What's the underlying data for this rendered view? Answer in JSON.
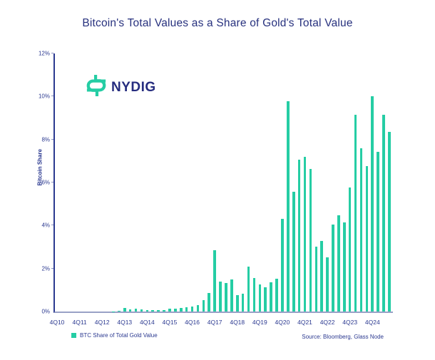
{
  "header": {
    "title": "Bitcoin's Total Values as a Share of Gold's Total Value"
  },
  "logo": {
    "text": "NYDIG"
  },
  "legend": {
    "label": "BTC Share of Total Gold Value"
  },
  "source": {
    "text": "Source: Bloomberg, Glass Node"
  },
  "colors": {
    "bar": "#25CDA4",
    "navy_text": "#2B3990",
    "title_text": "#27317E",
    "y_axis_line": "#2B3990",
    "x_axis_line": "#99A1C6"
  },
  "chart_data": {
    "type": "bar",
    "title": "Bitcoin's Total Values as a Share of Gold's Total Value",
    "xlabel": "",
    "ylabel": "Bitcoin Share",
    "ylim": [
      0,
      12
    ],
    "grid": false,
    "legend_position": "bottom-left",
    "y_tick_labels": [
      "0%",
      "2%",
      "4%",
      "6%",
      "8%",
      "10%",
      "12%"
    ],
    "x_tick_labels": [
      "4Q10",
      "4Q11",
      "4Q12",
      "4Q13",
      "4Q14",
      "4Q15",
      "4Q16",
      "4Q17",
      "4Q18",
      "4Q19",
      "4Q20",
      "4Q21",
      "4Q22",
      "4Q23",
      "4Q24"
    ],
    "x_tick_every": 4,
    "categories": [
      "4Q10",
      "1Q11",
      "2Q11",
      "3Q11",
      "4Q11",
      "1Q12",
      "2Q12",
      "3Q12",
      "4Q12",
      "1Q13",
      "2Q13",
      "3Q13",
      "4Q13",
      "1Q14",
      "2Q14",
      "3Q14",
      "4Q14",
      "1Q15",
      "2Q15",
      "3Q15",
      "4Q15",
      "1Q16",
      "2Q16",
      "3Q16",
      "4Q16",
      "1Q17",
      "2Q17",
      "3Q17",
      "4Q17",
      "1Q18",
      "2Q18",
      "3Q18",
      "4Q18",
      "1Q19",
      "2Q19",
      "3Q19",
      "4Q19",
      "1Q20",
      "2Q20",
      "3Q20",
      "4Q20",
      "1Q21",
      "2Q21",
      "3Q21",
      "4Q21",
      "1Q22",
      "2Q22",
      "3Q22",
      "4Q22",
      "1Q23",
      "2Q23",
      "3Q23",
      "4Q23",
      "1Q24",
      "2Q24",
      "3Q24",
      "4Q24",
      "1Q25",
      "2Q25",
      "3Q25"
    ],
    "series": [
      {
        "name": "BTC Share of Total Gold Value",
        "color": "#25CDA4",
        "values": [
          0,
          0,
          0,
          0,
          0,
          0,
          0,
          0,
          0,
          0,
          0.01,
          0.03,
          0.15,
          0.1,
          0.13,
          0.1,
          0.08,
          0.07,
          0.07,
          0.07,
          0.12,
          0.14,
          0.17,
          0.21,
          0.23,
          0.31,
          0.53,
          0.86,
          2.85,
          1.39,
          1.33,
          1.49,
          0.76,
          0.83,
          2.09,
          1.56,
          1.27,
          1.13,
          1.36,
          1.52,
          4.3,
          9.79,
          5.57,
          7.07,
          7.2,
          6.62,
          3.03,
          3.28,
          2.51,
          4.05,
          4.46,
          4.13,
          5.76,
          9.15,
          7.58,
          6.76,
          10.0,
          7.44,
          9.15,
          8.37
        ]
      }
    ]
  }
}
